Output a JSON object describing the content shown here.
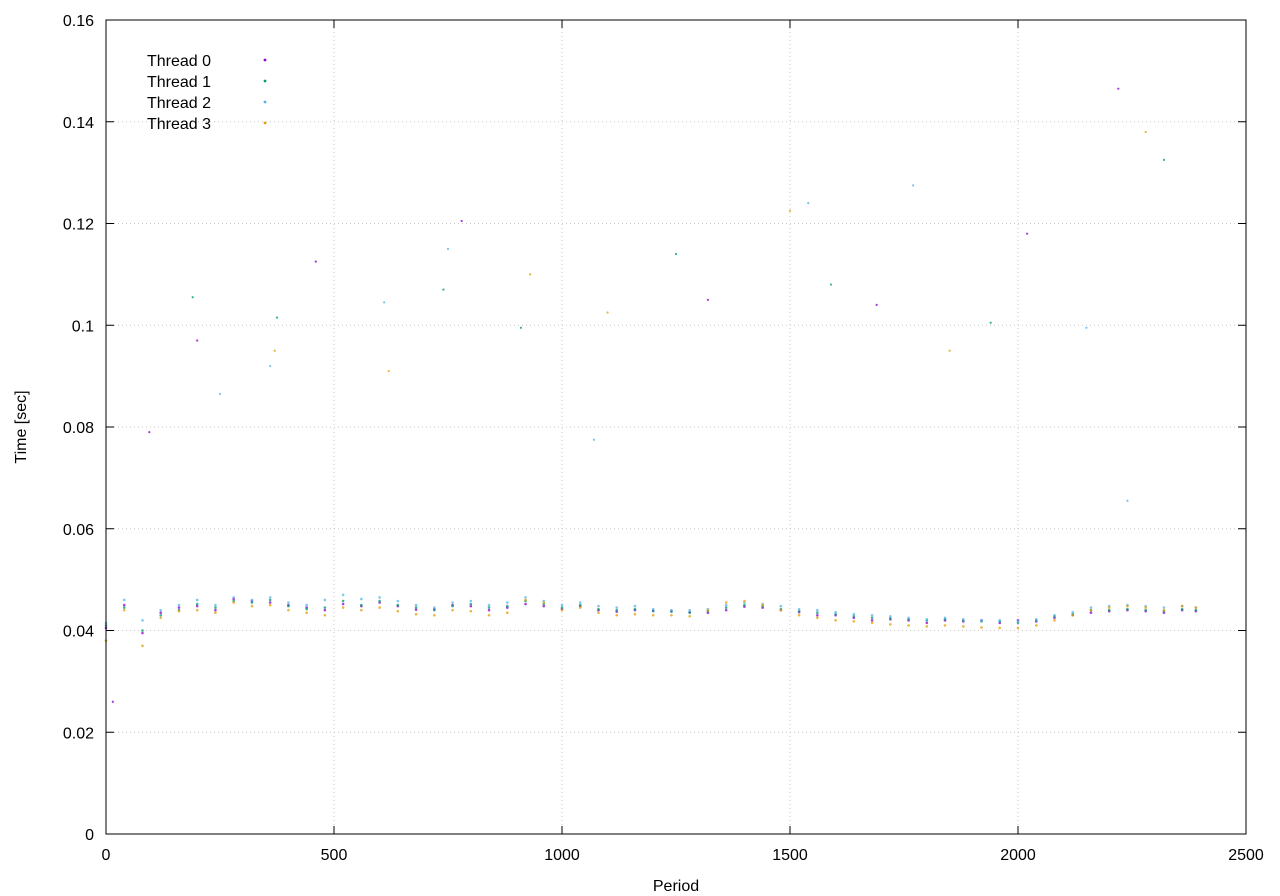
{
  "chart_data": {
    "type": "scatter",
    "title": "",
    "xlabel": "Period",
    "ylabel": "Time [sec]",
    "xlim": [
      0,
      2500
    ],
    "ylim": [
      0,
      0.16
    ],
    "xticks": [
      0,
      500,
      1000,
      1500,
      2000,
      2500
    ],
    "yticks": [
      0,
      0.02,
      0.04,
      0.06,
      0.08,
      0.1,
      0.12,
      0.14,
      0.16
    ],
    "xtick_labels": [
      "0",
      "500",
      "1000",
      "1500",
      "2000",
      "2500"
    ],
    "ytick_labels": [
      "0",
      "0.02",
      "0.04",
      "0.06",
      "0.08",
      "0.1",
      "0.12",
      "0.14",
      "0.16"
    ],
    "grid": true,
    "legend_position": "top-left",
    "series": [
      {
        "name": "Thread 0",
        "color": "#9400d3",
        "x": [
          0,
          40,
          80,
          120,
          160,
          200,
          240,
          280,
          320,
          360,
          400,
          440,
          480,
          520,
          560,
          600,
          640,
          680,
          720,
          760,
          800,
          840,
          880,
          920,
          960,
          1000,
          1040,
          1080,
          1120,
          1160,
          1200,
          1240,
          1280,
          1320,
          1360,
          1400,
          1440,
          1480,
          1520,
          1560,
          1600,
          1640,
          1680,
          1720,
          1760,
          1800,
          1840,
          1880,
          1920,
          1960,
          2000,
          2040,
          2080,
          2120,
          2160,
          2200,
          2240,
          2280,
          2320,
          2360,
          2390
        ],
        "y": [
          0.0405,
          0.045,
          0.0395,
          0.0435,
          0.0445,
          0.0448,
          0.044,
          0.0462,
          0.0458,
          0.0455,
          0.045,
          0.0445,
          0.044,
          0.0452,
          0.0448,
          0.0455,
          0.0448,
          0.0441,
          0.0442,
          0.045,
          0.0448,
          0.044,
          0.0445,
          0.0452,
          0.0448,
          0.0442,
          0.0448,
          0.044,
          0.0437,
          0.044,
          0.0439,
          0.0438,
          0.0436,
          0.0435,
          0.044,
          0.0447,
          0.0445,
          0.044,
          0.0436,
          0.043,
          0.043,
          0.0425,
          0.042,
          0.0422,
          0.042,
          0.0415,
          0.042,
          0.0418,
          0.042,
          0.0415,
          0.042,
          0.0418,
          0.0425,
          0.043,
          0.0435,
          0.0438,
          0.044,
          0.0438,
          0.0435,
          0.044,
          0.0438
        ]
      },
      {
        "name": "Thread 1",
        "color": "#009e73",
        "x": [
          0,
          40,
          80,
          120,
          160,
          200,
          240,
          280,
          320,
          360,
          400,
          440,
          480,
          520,
          560,
          600,
          640,
          680,
          720,
          760,
          800,
          840,
          880,
          920,
          960,
          1000,
          1040,
          1080,
          1120,
          1160,
          1200,
          1240,
          1280,
          1320,
          1360,
          1400,
          1440,
          1480,
          1520,
          1560,
          1600,
          1640,
          1680,
          1720,
          1760,
          1800,
          1840,
          1880,
          1920,
          1960,
          2000,
          2040,
          2080,
          2120,
          2160,
          2200,
          2240,
          2280,
          2320,
          2360,
          2390
        ],
        "y": [
          0.041,
          0.0445,
          0.04,
          0.043,
          0.044,
          0.0452,
          0.0445,
          0.0458,
          0.0455,
          0.046,
          0.0448,
          0.0442,
          0.0445,
          0.0458,
          0.045,
          0.0458,
          0.045,
          0.0445,
          0.044,
          0.0448,
          0.0452,
          0.0445,
          0.0448,
          0.0458,
          0.0452,
          0.0445,
          0.045,
          0.0442,
          0.044,
          0.0442,
          0.0438,
          0.0437,
          0.0435,
          0.0438,
          0.0445,
          0.045,
          0.0448,
          0.0442,
          0.0438,
          0.0435,
          0.0432,
          0.0428,
          0.0425,
          0.0424,
          0.0422,
          0.042,
          0.0422,
          0.042,
          0.0418,
          0.0418,
          0.0415,
          0.042,
          0.0428,
          0.0432,
          0.044,
          0.044,
          0.0442,
          0.044,
          0.0438,
          0.0442,
          0.044
        ]
      },
      {
        "name": "Thread 2",
        "color": "#56b4e9",
        "x": [
          0,
          40,
          80,
          120,
          160,
          200,
          240,
          280,
          320,
          360,
          400,
          440,
          480,
          520,
          560,
          600,
          640,
          680,
          720,
          760,
          800,
          840,
          880,
          920,
          960,
          1000,
          1040,
          1080,
          1120,
          1160,
          1200,
          1240,
          1280,
          1320,
          1360,
          1400,
          1440,
          1480,
          1520,
          1560,
          1600,
          1640,
          1680,
          1720,
          1760,
          1800,
          1840,
          1880,
          1920,
          1960,
          2000,
          2040,
          2080,
          2120,
          2160,
          2200,
          2240,
          2280,
          2320,
          2360,
          2390
        ],
        "y": [
          0.0415,
          0.046,
          0.042,
          0.044,
          0.045,
          0.046,
          0.045,
          0.0465,
          0.046,
          0.0465,
          0.0455,
          0.045,
          0.046,
          0.047,
          0.0462,
          0.0465,
          0.0458,
          0.045,
          0.0445,
          0.0455,
          0.0458,
          0.045,
          0.0455,
          0.0465,
          0.0458,
          0.045,
          0.0455,
          0.0448,
          0.0445,
          0.0448,
          0.0442,
          0.044,
          0.044,
          0.0442,
          0.045,
          0.0455,
          0.0452,
          0.0448,
          0.0442,
          0.044,
          0.0436,
          0.0432,
          0.043,
          0.0428,
          0.0425,
          0.0422,
          0.0425,
          0.0422,
          0.042,
          0.042,
          0.0418,
          0.0422,
          0.043,
          0.0436,
          0.0445,
          0.0448,
          0.045,
          0.0448,
          0.0445,
          0.0448,
          0.0445
        ]
      },
      {
        "name": "Thread 3",
        "color": "#e69f00",
        "x": [
          0,
          40,
          80,
          120,
          160,
          200,
          240,
          280,
          320,
          360,
          400,
          440,
          480,
          520,
          560,
          600,
          640,
          680,
          720,
          760,
          800,
          840,
          880,
          920,
          960,
          1000,
          1040,
          1080,
          1120,
          1160,
          1200,
          1240,
          1280,
          1320,
          1360,
          1400,
          1440,
          1480,
          1520,
          1560,
          1600,
          1640,
          1680,
          1720,
          1760,
          1800,
          1840,
          1880,
          1920,
          1960,
          2000,
          2040,
          2080,
          2120,
          2160,
          2200,
          2240,
          2280,
          2320,
          2360,
          2390
        ],
        "y": [
          0.038,
          0.044,
          0.037,
          0.0425,
          0.0438,
          0.044,
          0.0435,
          0.0455,
          0.0448,
          0.045,
          0.044,
          0.0435,
          0.043,
          0.0445,
          0.044,
          0.0445,
          0.0438,
          0.0432,
          0.043,
          0.044,
          0.0438,
          0.043,
          0.0435,
          0.046,
          0.0455,
          0.044,
          0.0445,
          0.0435,
          0.043,
          0.0432,
          0.043,
          0.043,
          0.0428,
          0.044,
          0.0455,
          0.0458,
          0.045,
          0.044,
          0.043,
          0.0425,
          0.042,
          0.0418,
          0.0415,
          0.0412,
          0.041,
          0.0408,
          0.041,
          0.0408,
          0.0406,
          0.0405,
          0.0405,
          0.041,
          0.042,
          0.043,
          0.044,
          0.0445,
          0.0448,
          0.0445,
          0.044,
          0.0448,
          0.0445
        ]
      }
    ],
    "outliers": [
      {
        "series": "Thread 0",
        "x": 15,
        "y": 0.026
      },
      {
        "series": "Thread 0",
        "x": 95,
        "y": 0.079
      },
      {
        "series": "Thread 1",
        "x": 190,
        "y": 0.1055
      },
      {
        "series": "Thread 0",
        "x": 200,
        "y": 0.097
      },
      {
        "series": "Thread 2",
        "x": 250,
        "y": 0.0865
      },
      {
        "series": "Thread 3",
        "x": 370,
        "y": 0.095
      },
      {
        "series": "Thread 1",
        "x": 375,
        "y": 0.1015
      },
      {
        "series": "Thread 2",
        "x": 360,
        "y": 0.092
      },
      {
        "series": "Thread 0",
        "x": 460,
        "y": 0.1125
      },
      {
        "series": "Thread 3",
        "x": 620,
        "y": 0.091
      },
      {
        "series": "Thread 2",
        "x": 610,
        "y": 0.1045
      },
      {
        "series": "Thread 1",
        "x": 740,
        "y": 0.107
      },
      {
        "series": "Thread 2",
        "x": 750,
        "y": 0.115
      },
      {
        "series": "Thread 0",
        "x": 780,
        "y": 0.1205
      },
      {
        "series": "Thread 3",
        "x": 930,
        "y": 0.11
      },
      {
        "series": "Thread 1",
        "x": 910,
        "y": 0.0995
      },
      {
        "series": "Thread 2",
        "x": 1070,
        "y": 0.0775
      },
      {
        "series": "Thread 3",
        "x": 1100,
        "y": 0.1025
      },
      {
        "series": "Thread 1",
        "x": 1250,
        "y": 0.114
      },
      {
        "series": "Thread 0",
        "x": 1320,
        "y": 0.105
      },
      {
        "series": "Thread 3",
        "x": 1500,
        "y": 0.1225
      },
      {
        "series": "Thread 2",
        "x": 1540,
        "y": 0.124
      },
      {
        "series": "Thread 1",
        "x": 1590,
        "y": 0.108
      },
      {
        "series": "Thread 0",
        "x": 1690,
        "y": 0.104
      },
      {
        "series": "Thread 2",
        "x": 1770,
        "y": 0.1275
      },
      {
        "series": "Thread 3",
        "x": 1850,
        "y": 0.095
      },
      {
        "series": "Thread 1",
        "x": 1940,
        "y": 0.1005
      },
      {
        "series": "Thread 0",
        "x": 2020,
        "y": 0.118
      },
      {
        "series": "Thread 2",
        "x": 2150,
        "y": 0.0995
      },
      {
        "series": "Thread 0",
        "x": 2220,
        "y": 0.1465
      },
      {
        "series": "Thread 3",
        "x": 2280,
        "y": 0.138
      },
      {
        "series": "Thread 1",
        "x": 2320,
        "y": 0.1325
      },
      {
        "series": "Thread 2",
        "x": 2240,
        "y": 0.0655
      }
    ]
  }
}
